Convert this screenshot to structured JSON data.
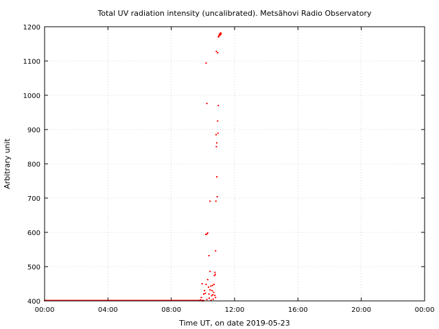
{
  "chart_data": {
    "type": "scatter",
    "title": "Total UV radiation intensity (uncalibrated). Metsähovi Radio Observatory",
    "xlabel": "Time UT, on date 2019-05-23",
    "ylabel": "Arbitrary unit",
    "xlim": [
      0,
      24
    ],
    "ylim": [
      400,
      1200
    ],
    "x_ticks": [
      "00:00",
      "04:00",
      "08:00",
      "12:00",
      "16:00",
      "20:00",
      "00:00"
    ],
    "y_ticks": [
      400,
      500,
      600,
      700,
      800,
      900,
      1000,
      1100,
      1200
    ],
    "grid": true,
    "series": [
      {
        "color": "#ff0000",
        "points": [
          [
            9.85,
            403
          ],
          [
            9.9,
            410
          ],
          [
            9.95,
            450
          ],
          [
            10.0,
            400
          ],
          [
            10.05,
            420
          ],
          [
            10.1,
            430
          ],
          [
            10.15,
            422
          ],
          [
            10.2,
            448
          ],
          [
            10.25,
            404
          ],
          [
            10.3,
            462
          ],
          [
            10.35,
            440
          ],
          [
            10.38,
            420
          ],
          [
            10.4,
            408
          ],
          [
            10.45,
            432
          ],
          [
            10.5,
            443
          ],
          [
            10.55,
            415
          ],
          [
            10.58,
            430
          ],
          [
            10.6,
            445
          ],
          [
            10.65,
            405
          ],
          [
            10.7,
            448
          ],
          [
            10.75,
            416
          ],
          [
            10.8,
            410
          ],
          [
            10.62,
            418
          ],
          [
            10.52,
            402
          ],
          [
            10.68,
            425
          ],
          [
            10.45,
            486
          ],
          [
            10.72,
            474
          ],
          [
            10.76,
            483
          ],
          [
            10.78,
            477
          ],
          [
            10.38,
            532
          ],
          [
            10.8,
            546
          ],
          [
            10.18,
            594
          ],
          [
            10.25,
            595
          ],
          [
            10.3,
            598
          ],
          [
            10.45,
            691
          ],
          [
            10.82,
            691
          ],
          [
            10.9,
            704
          ],
          [
            10.88,
            762
          ],
          [
            10.85,
            850
          ],
          [
            10.87,
            861
          ],
          [
            10.83,
            885
          ],
          [
            10.95,
            889
          ],
          [
            10.93,
            925
          ],
          [
            10.97,
            970
          ],
          [
            10.25,
            976
          ],
          [
            10.2,
            1094
          ],
          [
            10.85,
            1128
          ],
          [
            10.93,
            1124
          ],
          [
            10.98,
            1170
          ],
          [
            11.02,
            1175
          ],
          [
            11.05,
            1178
          ],
          [
            11.08,
            1180
          ],
          [
            11.12,
            1182
          ],
          [
            11.15,
            1179
          ],
          [
            11.1,
            1176
          ],
          [
            11.0,
            1172
          ]
        ]
      }
    ]
  }
}
